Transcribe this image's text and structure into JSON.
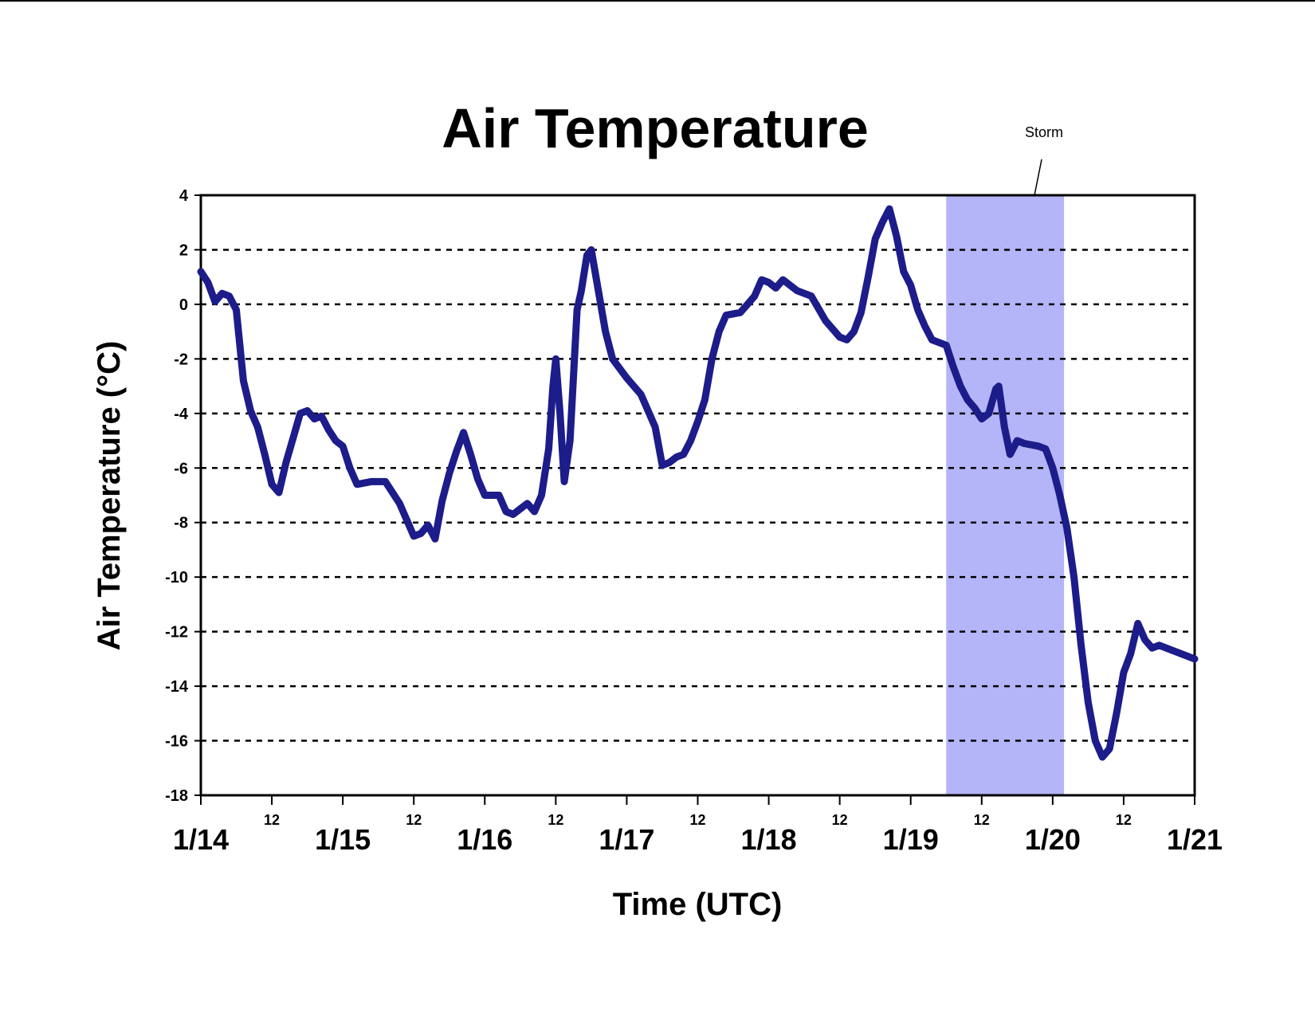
{
  "chart_data": {
    "type": "line",
    "title": "Air Temperature",
    "x_label": "Time (UTC)",
    "y_label": "Air Temperature (°C)",
    "xlim": [
      0,
      7
    ],
    "xticks": [
      {
        "value": 0,
        "label": "1/14"
      },
      {
        "value": 0.5,
        "label": "12"
      },
      {
        "value": 1,
        "label": "1/15"
      },
      {
        "value": 1.5,
        "label": "12"
      },
      {
        "value": 2,
        "label": "1/16"
      },
      {
        "value": 2.5,
        "label": "12"
      },
      {
        "value": 3,
        "label": "1/17"
      },
      {
        "value": 3.5,
        "label": "12"
      },
      {
        "value": 4,
        "label": "1/18"
      },
      {
        "value": 4.5,
        "label": "12"
      },
      {
        "value": 5,
        "label": "1/19"
      },
      {
        "value": 5.5,
        "label": "12"
      },
      {
        "value": 6,
        "label": "1/20"
      },
      {
        "value": 6.5,
        "label": "12"
      },
      {
        "value": 7,
        "label": "1/21"
      }
    ],
    "ylim": [
      -18,
      4
    ],
    "yticks": [
      -18,
      -16,
      -14,
      -12,
      -10,
      -8,
      -6,
      -4,
      -2,
      0,
      2,
      4
    ],
    "grid": true,
    "color": "#1c1c8a",
    "storm": {
      "label": "Storm",
      "xrange": [
        5.25,
        6.08
      ],
      "color": "#b4b4f8"
    },
    "x": [
      0,
      0.05,
      0.1,
      0.15,
      0.2,
      0.25,
      0.3,
      0.35,
      0.4,
      0.45,
      0.5,
      0.55,
      0.6,
      0.65,
      0.7,
      0.75,
      0.8,
      0.85,
      0.9,
      0.95,
      1.0,
      1.05,
      1.1,
      1.2,
      1.3,
      1.4,
      1.5,
      1.55,
      1.6,
      1.65,
      1.7,
      1.75,
      1.8,
      1.85,
      1.9,
      1.95,
      2.0,
      2.05,
      2.1,
      2.15,
      2.2,
      2.25,
      2.3,
      2.35,
      2.4,
      2.45,
      2.48,
      2.5,
      2.53,
      2.56,
      2.6,
      2.65,
      2.68,
      2.72,
      2.75,
      2.8,
      2.85,
      2.9,
      3.0,
      3.1,
      3.2,
      3.25,
      3.3,
      3.35,
      3.4,
      3.45,
      3.5,
      3.55,
      3.6,
      3.65,
      3.7,
      3.8,
      3.85,
      3.9,
      3.95,
      4.0,
      4.05,
      4.1,
      4.2,
      4.3,
      4.4,
      4.5,
      4.55,
      4.6,
      4.65,
      4.7,
      4.75,
      4.8,
      4.85,
      4.9,
      4.95,
      5.0,
      5.05,
      5.1,
      5.15,
      5.2,
      5.25,
      5.3,
      5.35,
      5.4,
      5.45,
      5.5,
      5.55,
      5.6,
      5.62,
      5.66,
      5.7,
      5.75,
      5.8,
      5.9,
      5.95,
      6.0,
      6.05,
      6.1,
      6.15,
      6.2,
      6.25,
      6.3,
      6.35,
      6.4,
      6.45,
      6.5,
      6.55,
      6.6,
      6.65,
      6.7,
      6.75,
      7.0
    ],
    "values": [
      1.2,
      0.8,
      0.1,
      0.4,
      0.3,
      -0.2,
      -2.8,
      -3.9,
      -4.5,
      -5.5,
      -6.6,
      -6.9,
      -5.8,
      -4.9,
      -4.0,
      -3.9,
      -4.2,
      -4.1,
      -4.6,
      -5.0,
      -5.2,
      -6.0,
      -6.6,
      -6.5,
      -6.5,
      -7.3,
      -8.5,
      -8.4,
      -8.1,
      -8.6,
      -7.2,
      -6.2,
      -5.4,
      -4.7,
      -5.5,
      -6.4,
      -7.0,
      -7.0,
      -7.0,
      -7.6,
      -7.7,
      -7.5,
      -7.3,
      -7.6,
      -7.0,
      -5.3,
      -3.0,
      -2.0,
      -4.0,
      -6.5,
      -5.0,
      -0.2,
      0.5,
      1.8,
      2.0,
      0.5,
      -1.0,
      -2.0,
      -2.7,
      -3.3,
      -4.5,
      -5.9,
      -5.8,
      -5.6,
      -5.5,
      -5.0,
      -4.3,
      -3.5,
      -2.0,
      -1.0,
      -0.4,
      -0.3,
      0.0,
      0.3,
      0.9,
      0.8,
      0.6,
      0.9,
      0.5,
      0.3,
      -0.6,
      -1.2,
      -1.3,
      -1.0,
      -0.3,
      1.0,
      2.4,
      3.0,
      3.5,
      2.5,
      1.2,
      0.7,
      -0.2,
      -0.8,
      -1.3,
      -1.4,
      -1.5,
      -2.3,
      -3.0,
      -3.5,
      -3.8,
      -4.2,
      -4.0,
      -3.1,
      -3.0,
      -4.5,
      -5.5,
      -5.0,
      -5.1,
      -5.2,
      -5.3,
      -6.0,
      -7.0,
      -8.2,
      -10.0,
      -12.5,
      -14.6,
      -16.0,
      -16.6,
      -16.3,
      -15.0,
      -13.5,
      -12.8,
      -11.7,
      -12.3,
      -12.6,
      -12.5,
      -13.0
    ]
  }
}
